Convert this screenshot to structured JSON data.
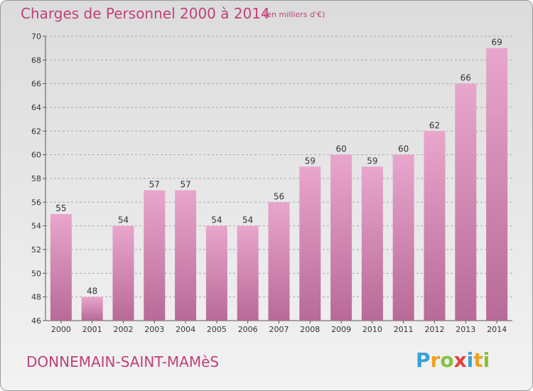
{
  "chart_data": {
    "type": "bar",
    "title": "Charges de Personnel 2000 à 2014",
    "subtitle": "(en milliers d'€)",
    "categories": [
      "2000",
      "2001",
      "2002",
      "2003",
      "2004",
      "2005",
      "2006",
      "2007",
      "2008",
      "2009",
      "2010",
      "2011",
      "2012",
      "2013",
      "2014"
    ],
    "values": [
      55,
      48,
      54,
      57,
      57,
      54,
      54,
      56,
      59,
      60,
      59,
      60,
      62,
      66,
      69
    ],
    "ylim": [
      46,
      70
    ],
    "yticks": [
      46,
      48,
      50,
      52,
      54,
      56,
      58,
      60,
      62,
      64,
      66,
      68,
      70
    ],
    "grid": true,
    "bar_color": "#d889b5"
  },
  "footer": {
    "place": "DONNEMAIN-SAINT-MAMèS",
    "logo": [
      "P",
      "r",
      "o",
      "x",
      "i",
      "t",
      "i"
    ]
  }
}
